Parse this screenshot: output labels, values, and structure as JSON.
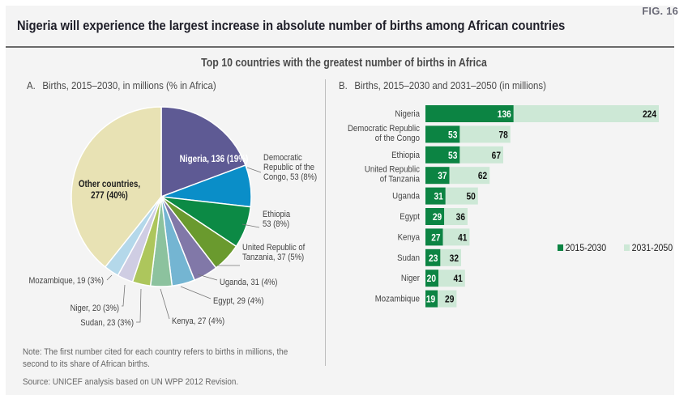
{
  "figure": {
    "fig_label": "FIG. 16",
    "title": "Nigeria will experience the largest increase in absolute number of births among African countries",
    "subtitle": "Top 10 countries with the greatest number of births in Africa",
    "note": "Note: The first number cited for each country refers to births in millions, the",
    "note_line2": "second to its share of African births.",
    "source": "Source: UNICEF analysis based on UN WPP 2012 Revision."
  },
  "chart_data": [
    {
      "type": "pie",
      "panel_letter": "A.",
      "title": "Births, 2015–2030, in millions (% in Africa)",
      "start": "top",
      "direction": "clockwise",
      "slices": [
        {
          "label": "Nigeria",
          "value": 136,
          "pct": "19%",
          "text": "Nigeria, 136 (19%)",
          "color": "#5e5a94",
          "label_inside": true
        },
        {
          "label": "Democratic Republic of the Congo",
          "value": 53,
          "pct": "8%",
          "lines": [
            "Democratic",
            "Republic of the",
            "Congo, 53 (8%)"
          ],
          "color": "#0a8ec8"
        },
        {
          "label": "Ethiopia",
          "value": 53,
          "pct": "8%",
          "lines": [
            "Ethiopia",
            "53 (8%)"
          ],
          "color": "#0c8a45"
        },
        {
          "label": "United Republic of Tanzania",
          "value": 37,
          "pct": "5%",
          "lines": [
            "United Republic of",
            "Tanzania,  37 (5%)"
          ],
          "color": "#6a9a2e"
        },
        {
          "label": "Uganda",
          "value": 31,
          "pct": "4%",
          "lines": [
            "Uganda,  31 (4%)"
          ],
          "color": "#8178a8"
        },
        {
          "label": "Egypt",
          "value": 29,
          "pct": "4%",
          "lines": [
            "Egypt,  29 (4%)"
          ],
          "color": "#74b5d2"
        },
        {
          "label": "Kenya",
          "value": 27,
          "pct": "4%",
          "lines": [
            "Kenya,  27 (4%)"
          ],
          "color": "#8cc29e"
        },
        {
          "label": "Sudan",
          "value": 23,
          "pct": "3%",
          "lines": [
            "Sudan, 23 (3%)"
          ],
          "color": "#adc65c"
        },
        {
          "label": "Niger",
          "value": 20,
          "pct": "3%",
          "lines": [
            "Niger, 20 (3%)"
          ],
          "color": "#cfcde3"
        },
        {
          "label": "Mozambique",
          "value": 19,
          "pct": "3%",
          "lines": [
            "Mozambique, 19 (3%)"
          ],
          "color": "#b4d8ea"
        },
        {
          "label": "Other countries",
          "value": 277,
          "pct": "40%",
          "lines": [
            "Other countries,",
            "277 (40%)"
          ],
          "color": "#e8e2b4",
          "label_inside": true
        }
      ]
    },
    {
      "type": "bar",
      "orientation": "horizontal",
      "stacked": true,
      "panel_letter": "B.",
      "title": "Births, 2015–2030 and 2031–2050 (in millions)",
      "categories": [
        [
          "Nigeria"
        ],
        [
          "Democratic Republic",
          "of the Congo"
        ],
        [
          "Ethiopia"
        ],
        [
          "United Republic",
          "of Tanzania"
        ],
        [
          "Uganda"
        ],
        [
          "Egypt"
        ],
        [
          "Kenya"
        ],
        [
          "Sudan"
        ],
        [
          "Niger"
        ],
        [
          "Mozambique"
        ]
      ],
      "series": [
        {
          "name": "2015-2030",
          "color": "#0c8443",
          "label_color": "#ffffff",
          "values": [
            136,
            53,
            53,
            37,
            31,
            29,
            27,
            23,
            20,
            19
          ]
        },
        {
          "name": "2031-2050",
          "color": "#cde8d6",
          "label_color": "#111111",
          "values": [
            224,
            78,
            67,
            62,
            50,
            36,
            41,
            32,
            41,
            29
          ]
        }
      ],
      "legend": {
        "position": "right",
        "items": [
          "2015-2030",
          "2031-2050"
        ]
      },
      "axis_visible": false
    }
  ]
}
